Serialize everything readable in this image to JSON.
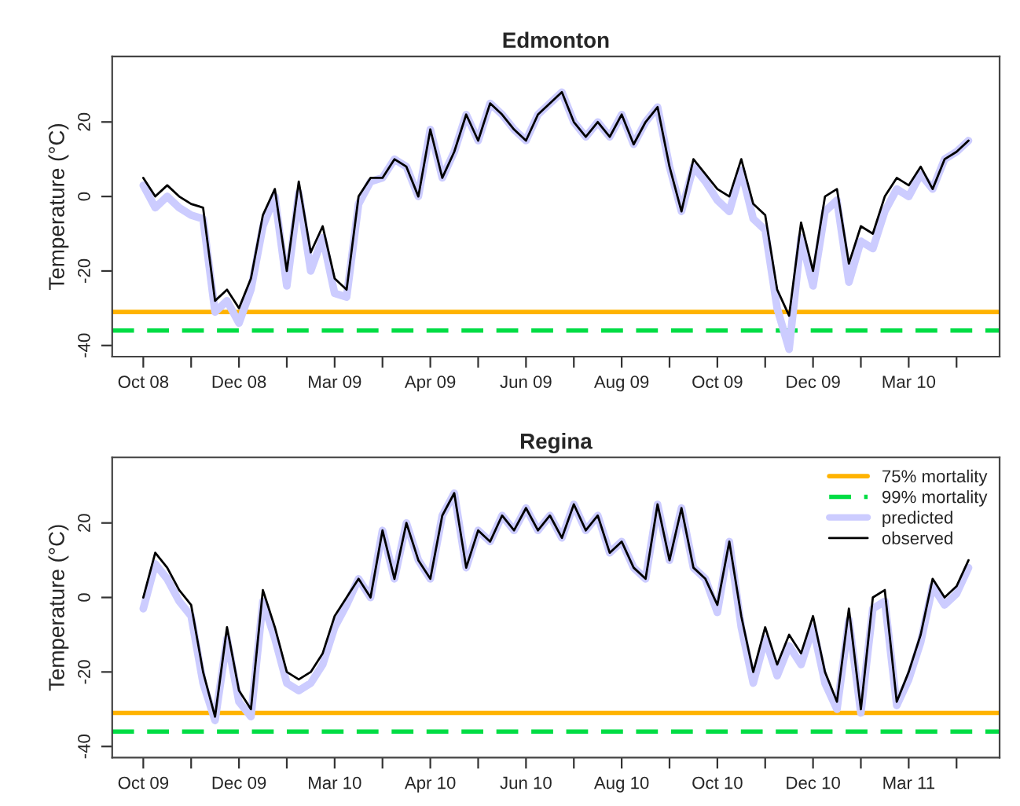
{
  "chart_data": [
    {
      "type": "line",
      "title": "Edmonton",
      "ylabel": "Temperature (°C)",
      "categories": [
        "Oct 08",
        null,
        null,
        null,
        null,
        null,
        null,
        null,
        "Dec 08",
        null,
        null,
        null,
        null,
        null,
        null,
        null,
        "Mar 09",
        null,
        null,
        null,
        null,
        null,
        null,
        null,
        "Apr 09",
        null,
        null,
        null,
        null,
        null,
        null,
        null,
        "Jun 09",
        null,
        null,
        null,
        null,
        null,
        null,
        null,
        "Aug 09",
        null,
        null,
        null,
        null,
        null,
        null,
        null,
        "Oct 09",
        null,
        null,
        null,
        null,
        null,
        null,
        null,
        "Dec 09",
        null,
        null,
        null,
        null,
        null,
        null,
        null,
        "Mar 10",
        null,
        null,
        null,
        null,
        null
      ],
      "series": [
        {
          "color": "#ccccff",
          "values": [
            3,
            -3,
            0,
            -3,
            -5,
            -6,
            -31,
            -28,
            -34,
            -25,
            -8,
            0,
            -24,
            1,
            -20,
            -11,
            -26,
            -27,
            -2,
            4,
            5,
            10,
            8,
            0,
            18,
            5,
            12,
            22,
            15,
            25,
            22,
            18,
            15,
            22,
            25,
            28,
            20,
            16,
            20,
            16,
            22,
            14,
            20,
            24,
            8,
            -4,
            8,
            4,
            -1,
            -4,
            7,
            -6,
            -9,
            -30,
            -41,
            -11,
            -24,
            -4,
            -1,
            -23,
            -12,
            -14,
            -4,
            2,
            0,
            6,
            2,
            10,
            12,
            15
          ]
        },
        {
          "color": "#000000",
          "values": [
            5,
            0,
            3,
            0,
            -2,
            -3,
            -28,
            -25,
            -30,
            -22,
            -5,
            2,
            -20,
            4,
            -15,
            -8,
            -22,
            -25,
            0,
            5,
            5,
            10,
            8,
            0,
            18,
            5,
            12,
            22,
            15,
            25,
            22,
            18,
            15,
            22,
            25,
            28,
            20,
            16,
            20,
            16,
            22,
            14,
            20,
            24,
            8,
            -4,
            10,
            6,
            2,
            0,
            10,
            -2,
            -5,
            -25,
            -32,
            -7,
            -20,
            0,
            2,
            -18,
            -8,
            -10,
            0,
            5,
            3,
            8,
            2,
            10,
            12,
            15
          ]
        }
      ],
      "ref_lines": [
        {
          "axis": "y",
          "value": -31,
          "color": "#ffb300",
          "line_style": "solid"
        },
        {
          "axis": "y",
          "value": -36,
          "color": "#00dd44",
          "line_style": "dashed"
        }
      ],
      "ylim": [
        -43,
        37.6
      ],
      "yticks": [
        -40,
        -20,
        0,
        20
      ],
      "grid": false,
      "legend": false
    },
    {
      "type": "line",
      "title": "Regina",
      "ylabel": "Temperature (°C)",
      "categories": [
        "Oct 09",
        null,
        null,
        null,
        null,
        null,
        null,
        null,
        "Dec 09",
        null,
        null,
        null,
        null,
        null,
        null,
        null,
        "Mar 10",
        null,
        null,
        null,
        null,
        null,
        null,
        null,
        "Apr 10",
        null,
        null,
        null,
        null,
        null,
        null,
        null,
        "Jun 10",
        null,
        null,
        null,
        null,
        null,
        null,
        null,
        "Aug 10",
        null,
        null,
        null,
        null,
        null,
        null,
        null,
        "Oct 10",
        null,
        null,
        null,
        null,
        null,
        null,
        null,
        "Dec 10",
        null,
        null,
        null,
        null,
        null,
        null,
        null,
        "Mar 11",
        null,
        null,
        null,
        null,
        null
      ],
      "series": [
        {
          "name": "predicted",
          "color": "#ccccff",
          "values": [
            -3,
            9,
            5,
            -1,
            -5,
            -23,
            -33,
            -11,
            -28,
            -32,
            -1,
            -11,
            -23,
            -25,
            -23,
            -18,
            -8,
            -2,
            5,
            0,
            18,
            5,
            20,
            10,
            5,
            22,
            28,
            8,
            18,
            15,
            22,
            18,
            24,
            18,
            22,
            16,
            25,
            18,
            22,
            12,
            15,
            8,
            5,
            25,
            10,
            24,
            8,
            5,
            -4,
            15,
            -8,
            -23,
            -11,
            -21,
            -13,
            -18,
            -8,
            -23,
            -30,
            -6,
            -31,
            -3,
            -1,
            -29,
            -22,
            -12,
            3,
            -2,
            1,
            8
          ]
        },
        {
          "name": "observed",
          "color": "#000000",
          "values": [
            0,
            12,
            8,
            2,
            -2,
            -20,
            -32,
            -8,
            -25,
            -30,
            2,
            -8,
            -20,
            -22,
            -20,
            -15,
            -5,
            0,
            5,
            0,
            18,
            5,
            20,
            10,
            5,
            22,
            28,
            8,
            18,
            15,
            22,
            18,
            24,
            18,
            22,
            16,
            25,
            18,
            22,
            12,
            15,
            8,
            5,
            25,
            10,
            24,
            8,
            5,
            -2,
            15,
            -5,
            -20,
            -8,
            -18,
            -10,
            -15,
            -5,
            -20,
            -28,
            -3,
            -30,
            0,
            2,
            -28,
            -20,
            -10,
            5,
            0,
            3,
            10
          ]
        }
      ],
      "ref_lines": [
        {
          "axis": "y",
          "value": -31,
          "label": "75% mortality",
          "color": "#ffb300",
          "line_style": "solid"
        },
        {
          "axis": "y",
          "value": -36,
          "label": "99% mortality",
          "color": "#00dd44",
          "line_style": "dashed"
        }
      ],
      "ylim": [
        -43,
        37.6
      ],
      "yticks": [
        -40,
        -20,
        0,
        20
      ],
      "grid": false,
      "legend": "top right"
    }
  ]
}
